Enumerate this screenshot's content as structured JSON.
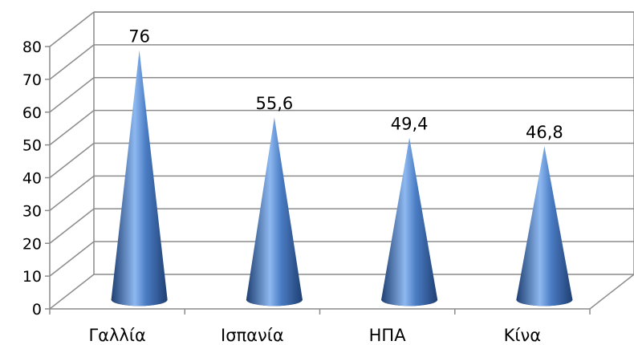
{
  "chart_data": {
    "type": "bar",
    "style": "3d-cone",
    "categories": [
      "Γαλλία",
      "Ισπανία",
      "ΗΠΑ",
      "Κίνα"
    ],
    "values": [
      76,
      55.6,
      49.4,
      46.8
    ],
    "data_labels": [
      "76",
      "55,6",
      "49,4",
      "46,8"
    ],
    "ylim": [
      0,
      80
    ],
    "yticks": [
      0,
      10,
      20,
      30,
      40,
      50,
      60,
      70,
      80
    ],
    "grid": true,
    "legend": "none",
    "colors": {
      "cone_dark": "#1F3F72",
      "cone_mid": "#4A7CC4",
      "cone_light": "#8DB8F0",
      "grid": "#8C8C8C"
    }
  }
}
